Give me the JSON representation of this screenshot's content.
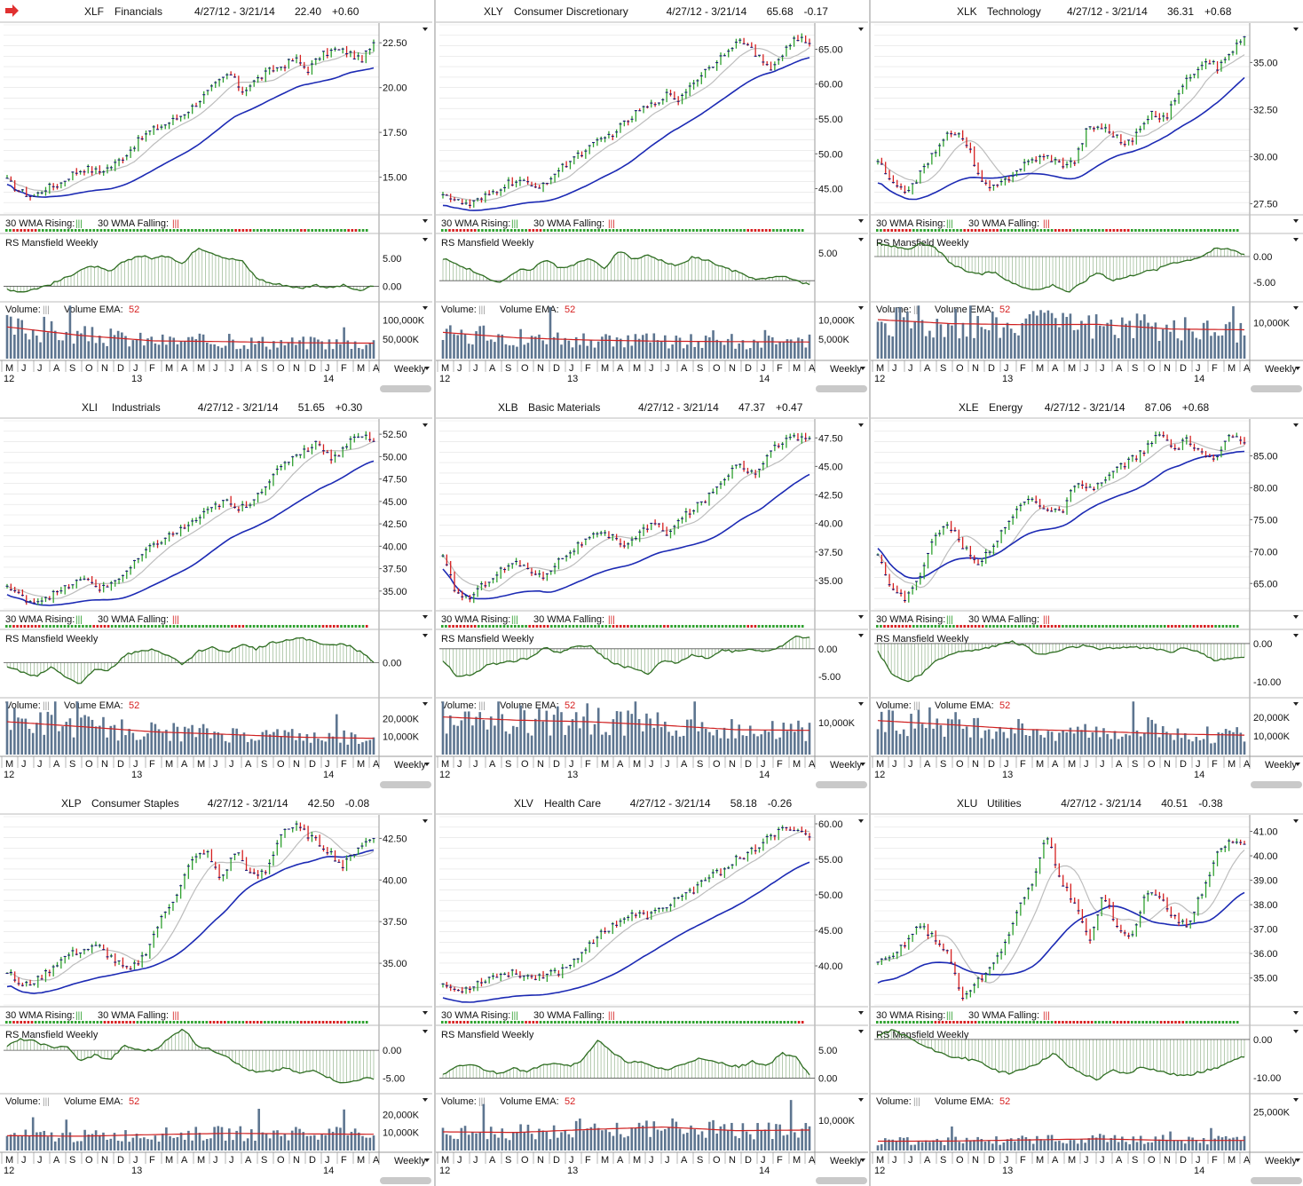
{
  "layout": {
    "grid": "3x3",
    "period_label": "Weekly"
  },
  "colors": {
    "up": "#2ea02e",
    "down": "#d62020",
    "body": "#1a1a7a",
    "wma30": "#1c2ab4",
    "wma10": "#bdbdbd",
    "rs": "#2f6e22",
    "volume": "#5d7590",
    "volema": "#d02020",
    "grid": "#e2e2e2"
  },
  "labels": {
    "wma_rising": "30 WMA Rising:",
    "wma_falling": "30 WMA Falling:",
    "rs": "RS Mansfield Weekly",
    "volume": "Volume:",
    "volume_ema": "Volume EMA:",
    "volume_ema_value": "52",
    "weekly": "Weekly",
    "bars_glyph": "|||"
  },
  "x_axis": {
    "months": [
      "M",
      "J",
      "J",
      "A",
      "S",
      "O",
      "N",
      "D",
      "J",
      "F",
      "M",
      "A",
      "M",
      "J",
      "J",
      "A",
      "S",
      "O",
      "N",
      "D",
      "J",
      "F",
      "M",
      "A"
    ],
    "years": [
      {
        "label": "12",
        "month_index": 0
      },
      {
        "label": "13",
        "month_index": 8
      },
      {
        "label": "14",
        "month_index": 20
      }
    ]
  },
  "chart_data": [
    {
      "type": "line",
      "ticker": "XLF",
      "name": "Financials",
      "range": "4/27/12 - 3/21/14",
      "last": "22.40",
      "change": "+0.60",
      "price_ticks": [
        "22.50",
        "20.00",
        "17.50",
        "15.00"
      ],
      "price_ylim": [
        13.0,
        23.5
      ],
      "prices": [
        14.8,
        14.2,
        13.9,
        14.4,
        14.6,
        15.2,
        15.5,
        15.3,
        15.6,
        16.2,
        17.0,
        17.6,
        17.9,
        18.3,
        18.8,
        19.5,
        20.2,
        20.8,
        19.8,
        20.4,
        20.9,
        21.2,
        21.6,
        21.0,
        21.8,
        22.1,
        22.0,
        21.5,
        22.4
      ],
      "wma30_start": 14.6,
      "wma30_end": 21.1,
      "rs_ticks": [
        "5.00",
        "0.00"
      ],
      "rs_ylim": [
        -2,
        9
      ],
      "rs": [
        -0.5,
        -1.0,
        -0.4,
        0.4,
        1.5,
        3.0,
        3.6,
        2.5,
        4.5,
        5.5,
        5.0,
        5.5,
        4.0,
        7.0,
        6.0,
        5.0,
        4.6,
        1.5,
        0.5,
        0.2,
        -0.4,
        0.3,
        -0.3,
        0.2,
        -1.0,
        0.2
      ],
      "volume_ticks": [
        "100,000K",
        "50,000K"
      ],
      "volume_max": 140000,
      "volume_ema": [
        82000,
        60000,
        46000,
        44000,
        41000,
        40000
      ]
    },
    {
      "type": "line",
      "ticker": "XLY",
      "name": "Consumer Discretionary",
      "range": "4/27/12 - 3/21/14",
      "last": "65.68",
      "change": "-0.17",
      "price_ticks": [
        "65.00",
        "60.00",
        "55.00",
        "50.00",
        "45.00"
      ],
      "price_ylim": [
        41.5,
        68.5
      ],
      "prices": [
        44.5,
        43.2,
        42.6,
        43.5,
        44.6,
        45.8,
        46.1,
        45.0,
        46.2,
        47.8,
        49.5,
        50.6,
        51.8,
        53.0,
        54.5,
        56.2,
        57.0,
        58.5,
        57.8,
        60.0,
        61.8,
        63.5,
        65.5,
        66.2,
        64.0,
        62.0,
        64.5,
        66.8,
        65.6
      ],
      "wma30_start": 42.6,
      "wma30_end": 63.8,
      "rs_ticks": [
        "5.00"
      ],
      "rs_ylim": [
        -3,
        8
      ],
      "rs": [
        4.0,
        3.0,
        1.8,
        0.5,
        -0.3,
        1.8,
        2.0,
        3.8,
        2.2,
        3.0,
        4.0,
        2.0,
        5.5,
        3.8,
        4.5,
        3.5,
        2.6,
        4.2,
        3.7,
        2.5,
        1.6,
        0.5,
        0.3,
        0.8,
        0.2,
        -0.8
      ],
      "volume_ticks": [
        "10,000K",
        "5,000K"
      ],
      "volume_max": 14000,
      "volume_ema": [
        6800,
        5400,
        4800,
        4500,
        4400,
        4300
      ]
    },
    {
      "type": "line",
      "ticker": "XLK",
      "name": "Technology",
      "range": "4/27/12 - 3/21/14",
      "last": "36.31",
      "change": "+0.68",
      "price_ticks": [
        "35.00",
        "32.50",
        "30.00",
        "27.50"
      ],
      "price_ylim": [
        27.0,
        37.0
      ],
      "prices": [
        29.8,
        28.6,
        28.1,
        28.8,
        29.9,
        31.0,
        31.3,
        30.4,
        28.5,
        28.3,
        28.9,
        29.5,
        29.9,
        30.0,
        29.6,
        29.7,
        31.5,
        31.6,
        31.2,
        30.6,
        31.4,
        32.3,
        32.0,
        33.5,
        34.4,
        35.2,
        34.7,
        35.6,
        36.3
      ],
      "wma30_start": 28.6,
      "wma30_end": 34.2,
      "rs_ticks": [
        "0.00",
        "-5.00"
      ],
      "rs_ylim": [
        -8,
        4
      ],
      "rs": [
        2.5,
        2.0,
        1.5,
        2.5,
        1.6,
        -1.5,
        -2.8,
        -3.5,
        -3.0,
        -5.0,
        -6.0,
        -6.5,
        -5.5,
        -7.0,
        -5.0,
        -3.0,
        -4.6,
        -4.0,
        -3.0,
        -2.6,
        -1.2,
        -0.8,
        0.0,
        1.5,
        1.5,
        0.5
      ],
      "volume_ticks": [
        "10,000K"
      ],
      "volume_max": 15000,
      "volume_ema": [
        10800,
        9700,
        9400,
        9500,
        8200,
        8000
      ]
    },
    {
      "type": "line",
      "ticker": "XLI",
      "name": "Industrials",
      "range": "4/27/12 - 3/21/14",
      "last": "51.65",
      "change": "+0.30",
      "price_ticks": [
        "52.50",
        "50.00",
        "47.50",
        "45.00",
        "42.50",
        "40.00",
        "37.50",
        "35.00"
      ],
      "price_ylim": [
        33.0,
        54.0
      ],
      "prices": [
        35.5,
        34.4,
        33.8,
        34.4,
        35.0,
        36.0,
        36.2,
        35.2,
        36.2,
        37.4,
        39.1,
        40.3,
        41.2,
        42.0,
        43.0,
        44.1,
        45.1,
        44.0,
        45.0,
        46.8,
        48.4,
        50.0,
        50.8,
        51.6,
        49.6,
        51.4,
        52.6,
        51.6
      ],
      "wma30_start": 34.6,
      "wma30_end": 49.5,
      "rs_ticks": [
        "0.00"
      ],
      "rs_ylim": [
        -4,
        4
      ],
      "rs": [
        -0.5,
        -1.2,
        -1.8,
        -0.5,
        -1.8,
        -2.8,
        -0.8,
        -1.0,
        1.0,
        1.4,
        1.8,
        1.0,
        -0.3,
        1.5,
        2.0,
        1.3,
        2.5,
        1.8,
        2.6,
        3.0,
        3.2,
        2.8,
        2.2,
        2.5,
        1.5,
        0.2
      ],
      "volume_ticks": [
        "20,000K",
        "10,000K"
      ],
      "volume_max": 30000,
      "volume_ema": [
        18200,
        15500,
        12600,
        11200,
        9600,
        9000
      ]
    },
    {
      "type": "line",
      "ticker": "XLB",
      "name": "Basic Materials",
      "range": "4/27/12 - 3/21/14",
      "last": "47.37",
      "change": "+0.47",
      "price_ticks": [
        "47.50",
        "45.00",
        "42.50",
        "40.00",
        "37.50",
        "35.00"
      ],
      "price_ylim": [
        32.5,
        49.0
      ],
      "prices": [
        37.0,
        33.8,
        33.5,
        34.8,
        35.8,
        36.5,
        36.2,
        35.2,
        36.5,
        37.5,
        38.4,
        39.0,
        38.8,
        38.1,
        39.2,
        40.0,
        39.1,
        40.5,
        41.5,
        42.5,
        44.0,
        45.5,
        44.2,
        46.0,
        47.2,
        47.5,
        47.4
      ],
      "wma30_start": 36.0,
      "wma30_end": 44.3,
      "rs_ticks": [
        "0.00",
        "-5.00"
      ],
      "rs_ylim": [
        -8,
        3
      ],
      "rs": [
        -2.0,
        -5.0,
        -4.6,
        -3.0,
        -2.5,
        -2.2,
        -1.5,
        0.2,
        -0.8,
        0.5,
        0.6,
        -1.5,
        -3.0,
        -3.5,
        -4.5,
        -2.0,
        -2.5,
        -1.0,
        -1.8,
        -0.3,
        -0.5,
        0.0,
        -0.4,
        0.3,
        2.2,
        2.0
      ],
      "volume_ticks": [
        "10,000K"
      ],
      "volume_max": 17000,
      "volume_ema": [
        11800,
        10800,
        10300,
        9200,
        7800,
        7600
      ]
    },
    {
      "type": "line",
      "ticker": "XLE",
      "name": "Energy",
      "range": "4/27/12 - 3/21/14",
      "last": "87.06",
      "change": "+0.68",
      "price_ticks": [
        "85.00",
        "80.00",
        "75.00",
        "70.00",
        "65.00"
      ],
      "price_ylim": [
        61.0,
        90.5
      ],
      "prices": [
        70.0,
        64.0,
        62.5,
        66.5,
        72.0,
        74.5,
        71.0,
        68.0,
        70.5,
        73.5,
        77.0,
        78.5,
        76.5,
        76.0,
        80.5,
        79.5,
        81.0,
        83.0,
        84.5,
        86.0,
        88.5,
        86.0,
        87.5,
        85.5,
        84.0,
        88.5,
        87.0
      ],
      "wma30_start": 70.5,
      "wma30_end": 85.7,
      "rs_ticks": [
        "0.00",
        "-10.00"
      ],
      "rs_ylim": [
        -13,
        3
      ],
      "rs": [
        -2.0,
        -8.0,
        -10.0,
        -8.0,
        -4.5,
        -2.5,
        -2.0,
        -1.5,
        -0.6,
        0.6,
        -0.5,
        -3.0,
        -2.3,
        -1.2,
        -0.5,
        -1.5,
        -1.3,
        -0.8,
        -1.2,
        -1.4,
        -2.2,
        -1.0,
        -2.3,
        -4.5,
        -4.0,
        -3.5
      ],
      "volume_ticks": [
        "20,000K",
        "10,000K"
      ],
      "volume_max": 29000,
      "volume_ema": [
        18200,
        16000,
        13500,
        12400,
        11000,
        10400
      ]
    },
    {
      "type": "line",
      "ticker": "XLP",
      "name": "Consumer Staples",
      "range": "4/27/12 - 3/21/14",
      "last": "42.50",
      "change": "-0.08",
      "price_ticks": [
        "42.50",
        "40.00",
        "37.50",
        "35.00"
      ],
      "price_ylim": [
        32.5,
        43.8
      ],
      "prices": [
        34.5,
        33.6,
        34.0,
        34.8,
        35.5,
        35.8,
        36.0,
        35.2,
        34.5,
        35.5,
        37.5,
        39.0,
        41.0,
        41.8,
        40.0,
        41.8,
        40.2,
        40.5,
        43.0,
        43.2,
        42.5,
        41.8,
        40.8,
        42.0,
        42.5
      ],
      "wma30_start": 33.6,
      "wma30_end": 41.8,
      "rs_ticks": [
        "0.00",
        "-5.00"
      ],
      "rs_ylim": [
        -7,
        4
      ],
      "rs": [
        0.8,
        2.0,
        1.5,
        0.5,
        0.8,
        -2.0,
        -0.8,
        -1.8,
        0.8,
        0.0,
        0.0,
        2.0,
        4.0,
        0.8,
        0.0,
        -1.0,
        -3.0,
        -4.0,
        -3.8,
        -3.2,
        -4.2,
        -3.5,
        -5.0,
        -6.0,
        -5.2,
        -5.0
      ],
      "volume_ticks": [
        "20,000K",
        "10,000K"
      ],
      "volume_max": 30000,
      "volume_ema": [
        8200,
        7900,
        8800,
        9500,
        9200,
        9000
      ]
    },
    {
      "type": "line",
      "ticker": "XLV",
      "name": "Health Care",
      "range": "4/27/12 - 3/21/14",
      "last": "58.18",
      "change": "-0.26",
      "price_ticks": [
        "60.00",
        "55.00",
        "50.00",
        "45.00",
        "40.00"
      ],
      "price_ylim": [
        34.5,
        61.0
      ],
      "prices": [
        37.5,
        36.4,
        37.2,
        38.2,
        38.8,
        39.0,
        38.4,
        38.8,
        39.2,
        40.8,
        43.2,
        44.8,
        46.3,
        47.2,
        47.0,
        48.0,
        49.6,
        50.5,
        52.3,
        53.3,
        55.0,
        56.0,
        57.6,
        59.0,
        59.5,
        58.2
      ],
      "wma30_start": 35.5,
      "wma30_end": 54.6,
      "rs_ticks": [
        "5.00",
        "0.00"
      ],
      "rs_ylim": [
        -2,
        9
      ],
      "rs": [
        0.5,
        2.0,
        2.5,
        1.5,
        0.8,
        2.0,
        1.0,
        2.5,
        2.8,
        2.2,
        3.5,
        7.0,
        4.5,
        3.0,
        2.8,
        2.0,
        1.5,
        2.5,
        3.5,
        3.0,
        2.6,
        2.0,
        3.0,
        2.2,
        4.5,
        3.8,
        0.5
      ],
      "volume_ticks": [
        "10,000K"
      ],
      "volume_max": 18000,
      "volume_ema": [
        6200,
        6000,
        7000,
        7800,
        6600,
        6800
      ]
    },
    {
      "type": "line",
      "ticker": "XLU",
      "name": "Utilities",
      "range": "4/27/12 - 3/21/14",
      "last": "40.51",
      "change": "-0.38",
      "price_ticks": [
        "41.00",
        "40.00",
        "39.00",
        "38.00",
        "37.00",
        "36.00",
        "35.00"
      ],
      "price_ylim": [
        33.9,
        41.6
      ],
      "prices": [
        35.6,
        35.8,
        36.5,
        37.2,
        36.6,
        36.0,
        34.2,
        34.8,
        35.4,
        36.4,
        37.8,
        39.0,
        40.8,
        39.0,
        38.0,
        36.5,
        38.5,
        37.0,
        36.6,
        38.5,
        38.3,
        37.5,
        37.2,
        38.5,
        40.0,
        40.6,
        40.5
      ],
      "wma30_start": 34.8,
      "wma30_end": 38.5,
      "rs_ticks": [
        "0.00",
        "-10.00"
      ],
      "rs_ylim": [
        -13,
        3
      ],
      "rs": [
        1.0,
        2.5,
        0.8,
        -1.5,
        -3.0,
        -4.5,
        -5.0,
        -6.0,
        -8.0,
        -9.0,
        -7.5,
        -6.0,
        -3.5,
        -7.0,
        -9.0,
        -10.5,
        -8.0,
        -9.0,
        -7.0,
        -8.0,
        -9.0,
        -9.5,
        -8.5,
        -7.5,
        -6.0,
        -4.5
      ],
      "volume_ticks": [
        "25,000K"
      ],
      "volume_max": 35000,
      "volume_ema": [
        6000,
        6100,
        6800,
        7500,
        6500,
        6500
      ]
    }
  ]
}
